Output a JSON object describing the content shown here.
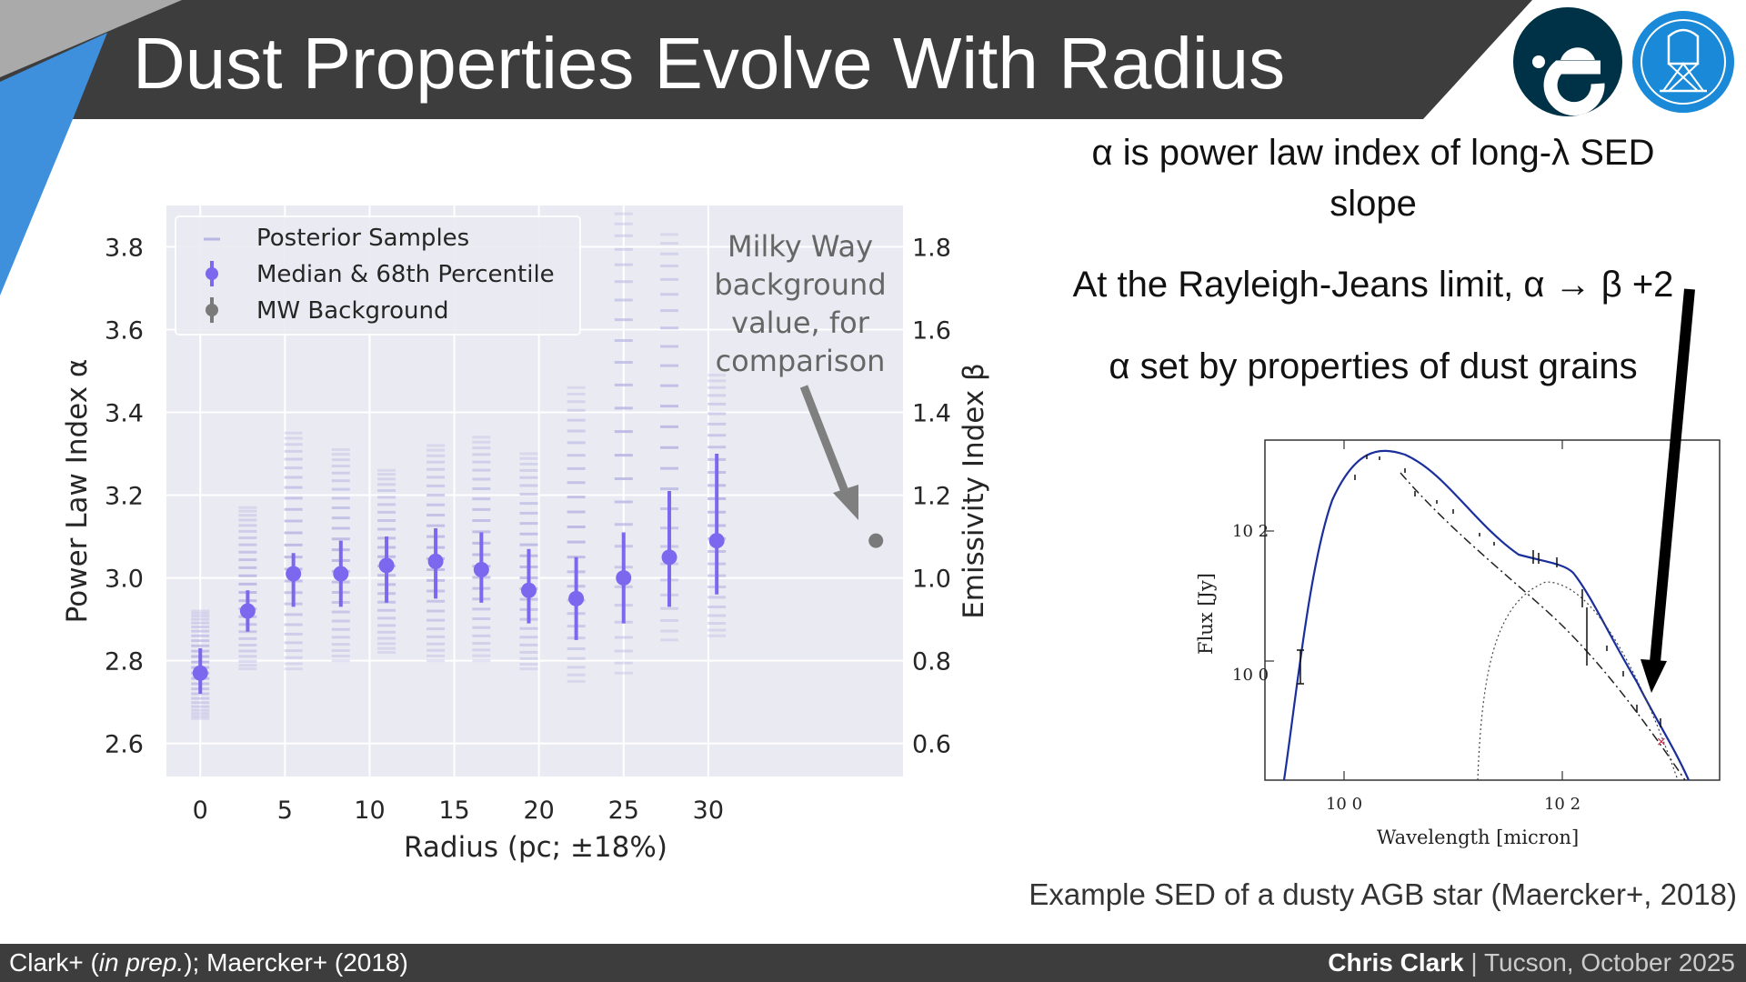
{
  "header": {
    "title": "Dust Properties Evolve With Radius",
    "colors": {
      "bar": "#3d3d3e",
      "accent_blue": "#3e8fdc",
      "accent_grey": "#aaaaaa"
    },
    "logos": [
      "esa-logo",
      "eso-logo"
    ]
  },
  "description": {
    "line1": "α is power law index of long-λ SED slope",
    "line2": "At the Rayleigh-Jeans limit, α → β +2",
    "line3": "α set by properties of dust grains"
  },
  "annotation": {
    "line1": "Milky Way",
    "line2": "background",
    "line3": "value, for",
    "line4": "comparison"
  },
  "sed_caption": "Example SED of a dusty AGB star (Maercker+, 2018)",
  "footer": {
    "citation_a": "Clark+ (",
    "citation_italic": "in prep.",
    "citation_b": "); Maercker+ (2018)",
    "presenter": "Chris Clark",
    "separator": " | ",
    "venue": "Tucson, October 2025"
  },
  "chart_data": [
    {
      "type": "scatter",
      "xlabel": "Radius (pc; ±18%)",
      "ylabel": "Power Law Index α",
      "y2label": "Emissivity Index β",
      "xticks": [
        0,
        5,
        10,
        15,
        20,
        25,
        30
      ],
      "yticks": [
        2.6,
        2.8,
        3.0,
        3.2,
        3.4,
        3.6,
        3.8
      ],
      "y2ticks": [
        0.6,
        0.8,
        1.0,
        1.2,
        1.4,
        1.6,
        1.8
      ],
      "xlim": [
        -2,
        41.5
      ],
      "ylim": [
        2.52,
        3.9
      ],
      "grid": true,
      "legend_position": "top-left",
      "colors": {
        "median": "#7b68ee",
        "posterior": "#b8b6e3",
        "mw": "#7a7a7a",
        "background": "#eaeaf2"
      },
      "series": [
        {
          "name": "Posterior Samples",
          "x": [
            0,
            2.8,
            5.5,
            8.3,
            11,
            13.9,
            16.6,
            19.4,
            22.2,
            25,
            27.7,
            30.5
          ],
          "y_low": [
            2.66,
            2.78,
            2.78,
            2.8,
            2.82,
            2.8,
            2.8,
            2.78,
            2.75,
            2.77,
            2.85,
            2.86
          ],
          "y_high": [
            2.92,
            3.17,
            3.35,
            3.31,
            3.26,
            3.32,
            3.34,
            3.3,
            3.46,
            3.88,
            3.83,
            3.49
          ]
        },
        {
          "name": "Median & 68th Percentile",
          "x": [
            0,
            2.8,
            5.5,
            8.3,
            11,
            13.9,
            16.6,
            19.4,
            22.2,
            25,
            27.7,
            30.5
          ],
          "y": [
            2.77,
            2.92,
            3.01,
            3.01,
            3.03,
            3.04,
            3.02,
            2.97,
            2.95,
            3.0,
            3.05,
            3.09
          ],
          "y_err_low": [
            2.72,
            2.87,
            2.93,
            2.93,
            2.94,
            2.95,
            2.94,
            2.89,
            2.85,
            2.89,
            2.93,
            2.96
          ],
          "y_err_high": [
            2.83,
            2.97,
            3.06,
            3.09,
            3.1,
            3.12,
            3.11,
            3.07,
            3.05,
            3.11,
            3.21,
            3.3
          ]
        },
        {
          "name": "MW Background",
          "x": [
            39.9
          ],
          "y": [
            3.09
          ]
        }
      ]
    },
    {
      "type": "line",
      "xlabel": "Wavelength [micron]",
      "ylabel": "Flux [Jy]",
      "x_scale": "log",
      "y_scale": "log",
      "xticks": [
        "10 0",
        "10 2"
      ],
      "yticks": [
        "10 0",
        "10 2"
      ]
    }
  ]
}
